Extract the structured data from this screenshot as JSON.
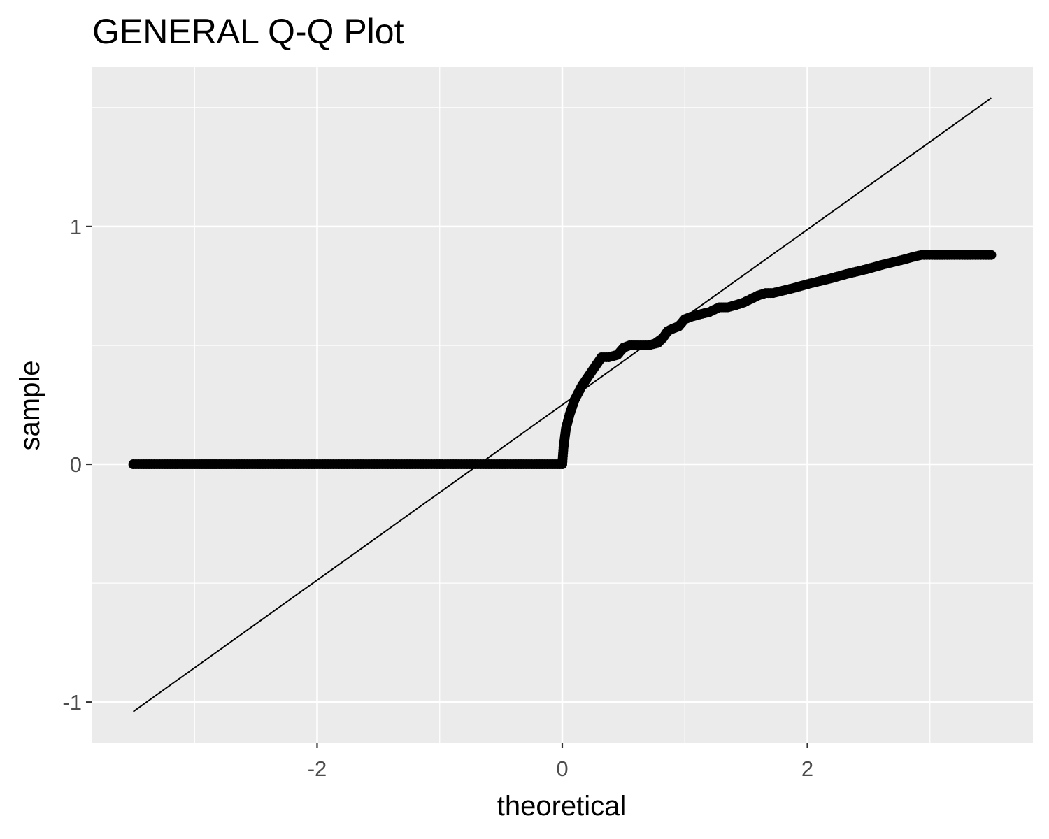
{
  "chart_data": {
    "type": "scatter",
    "title": "GENERAL Q-Q Plot",
    "xlabel": "theoretical",
    "ylabel": "sample",
    "xlim": [
      -3.84,
      3.84
    ],
    "ylim": [
      -1.17,
      1.67
    ],
    "x_ticks": [
      {
        "value": -2,
        "label": "-2"
      },
      {
        "value": 0,
        "label": "0"
      },
      {
        "value": 2,
        "label": "2"
      }
    ],
    "y_ticks": [
      {
        "value": -1,
        "label": "-1"
      },
      {
        "value": 0,
        "label": "0"
      },
      {
        "value": 1,
        "label": "1"
      }
    ],
    "x_minor_gridlines": [
      -3,
      -1,
      1,
      3
    ],
    "y_minor_gridlines": [
      -0.5,
      0.5,
      1.5
    ],
    "grid": true,
    "background_color": "#ebebeb",
    "grid_color": "#ffffff",
    "point_color": "#000000",
    "reference_line": {
      "x": [
        -3.5,
        3.5
      ],
      "y": [
        -1.04,
        1.54
      ]
    },
    "series": [
      {
        "x": [
          -3.5,
          -3.2,
          -3.04,
          -2.94,
          -2.87,
          -2.82,
          -2.7,
          -2.4,
          -2.0,
          -1.6,
          -1.2,
          -0.8,
          -0.4,
          -0.1,
          0.0,
          0.01,
          0.015,
          0.02,
          0.025,
          0.03,
          0.04,
          0.05,
          0.06,
          0.08,
          0.1,
          0.13,
          0.16,
          0.2,
          0.24,
          0.28,
          0.32,
          0.38,
          0.45,
          0.5,
          0.55,
          0.62,
          0.7,
          0.78,
          0.82,
          0.86,
          0.9,
          0.95,
          1.0,
          1.05,
          1.12,
          1.2,
          1.28,
          1.35,
          1.42,
          1.48,
          1.52,
          1.56,
          1.6,
          1.66,
          1.72,
          1.8,
          1.88,
          1.95,
          2.02,
          2.1,
          2.18,
          2.25,
          2.32,
          2.4,
          2.48,
          2.55,
          2.62,
          2.7,
          2.78,
          2.85,
          2.93,
          3.04,
          3.2,
          3.5
        ],
        "y": [
          0.0,
          0.0,
          0.0,
          0.0,
          0.0,
          0.0,
          0.0,
          0.0,
          0.0,
          0.0,
          0.0,
          0.0,
          0.0,
          0.0,
          0.0,
          0.07,
          0.09,
          0.11,
          0.13,
          0.15,
          0.17,
          0.19,
          0.21,
          0.24,
          0.27,
          0.3,
          0.33,
          0.36,
          0.39,
          0.42,
          0.45,
          0.45,
          0.46,
          0.49,
          0.5,
          0.5,
          0.5,
          0.51,
          0.53,
          0.56,
          0.57,
          0.58,
          0.61,
          0.62,
          0.63,
          0.64,
          0.66,
          0.66,
          0.67,
          0.68,
          0.69,
          0.7,
          0.71,
          0.72,
          0.72,
          0.73,
          0.74,
          0.75,
          0.76,
          0.77,
          0.78,
          0.79,
          0.8,
          0.81,
          0.82,
          0.83,
          0.84,
          0.85,
          0.86,
          0.87,
          0.88,
          0.88,
          0.88,
          0.88
        ]
      }
    ]
  }
}
